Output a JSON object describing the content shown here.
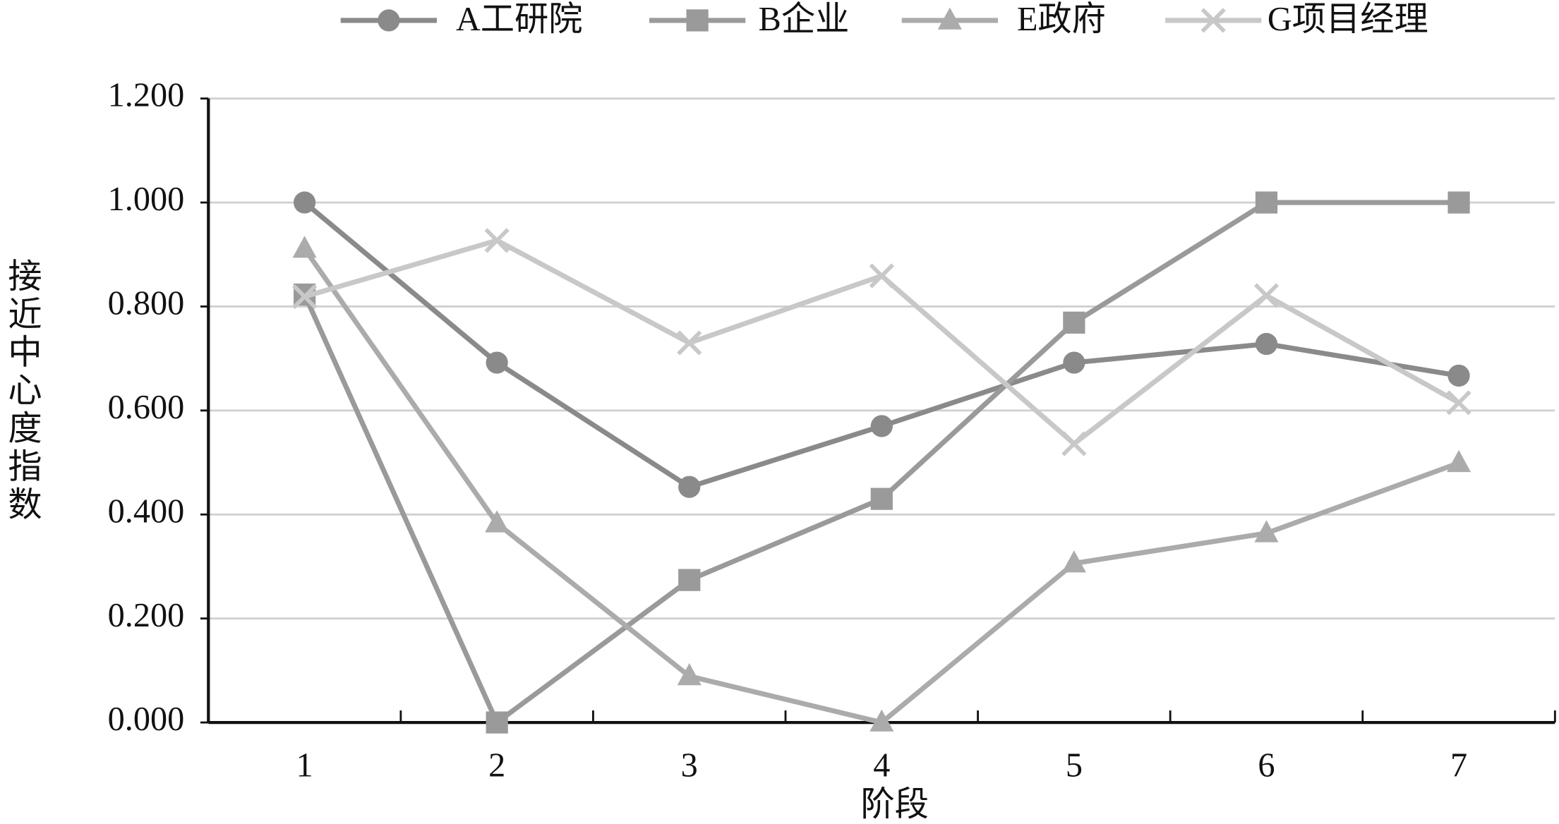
{
  "chart_data": {
    "type": "line",
    "x_label": "阶段",
    "y_label": "接近中心度指数",
    "categories": [
      "1",
      "2",
      "3",
      "4",
      "5",
      "6",
      "7"
    ],
    "series": [
      {
        "name": "A工研院",
        "color": "#8a8a8a",
        "marker": "circle",
        "values": [
          1.0,
          0.692,
          0.453,
          0.57,
          0.692,
          0.728,
          0.667
        ]
      },
      {
        "name": "B企业",
        "color": "#9a9a9a",
        "marker": "square",
        "values": [
          0.823,
          0.0,
          0.274,
          0.43,
          0.769,
          1.0,
          1.0
        ]
      },
      {
        "name": "E政府",
        "color": "#ababab",
        "marker": "triangle",
        "values": [
          0.911,
          0.383,
          0.089,
          0.0,
          0.306,
          0.364,
          0.499
        ]
      },
      {
        "name": "G项目经理",
        "color": "#c8c8c8",
        "marker": "x",
        "values": [
          0.819,
          0.927,
          0.73,
          0.859,
          0.536,
          0.821,
          0.615
        ]
      }
    ],
    "ylim": [
      0,
      1.2
    ],
    "yticks": [
      {
        "value": 0,
        "label": "0.000"
      },
      {
        "value": 0.2,
        "label": "0.200"
      },
      {
        "value": 0.4,
        "label": "0.400"
      },
      {
        "value": 0.6,
        "label": "0.600"
      },
      {
        "value": 0.8,
        "label": "0.800"
      },
      {
        "value": 1.0,
        "label": "1.000"
      },
      {
        "value": 1.2,
        "label": "1.200"
      }
    ],
    "grid": true,
    "legend": "top"
  }
}
